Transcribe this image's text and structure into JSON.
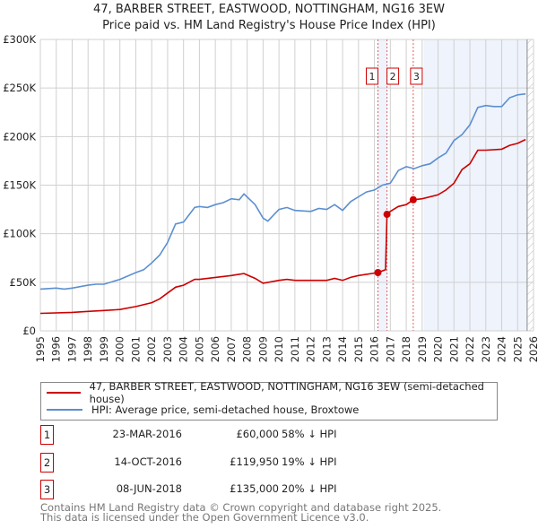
{
  "title": "47, BARBER STREET, EASTWOOD, NOTTINGHAM, NG16 3EW",
  "subtitle": "Price paid vs. HM Land Registry's House Price Index (HPI)",
  "chart_data": {
    "type": "line",
    "xlim": [
      1995,
      2026
    ],
    "ylim": [
      0,
      300000
    ],
    "y_ticks": [
      {
        "v": 0,
        "label": "£0"
      },
      {
        "v": 50000,
        "label": "£50K"
      },
      {
        "v": 100000,
        "label": "£100K"
      },
      {
        "v": 150000,
        "label": "£150K"
      },
      {
        "v": 200000,
        "label": "£200K"
      },
      {
        "v": 250000,
        "label": "£250K"
      },
      {
        "v": 300000,
        "label": "£300K"
      }
    ],
    "x_ticks": [
      "1995",
      "1996",
      "1997",
      "1998",
      "1999",
      "2000",
      "2001",
      "2002",
      "2003",
      "2004",
      "2005",
      "2006",
      "2007",
      "2008",
      "2009",
      "2010",
      "2011",
      "2012",
      "2013",
      "2014",
      "2015",
      "2016",
      "2017",
      "2018",
      "2019",
      "2020",
      "2021",
      "2022",
      "2023",
      "2024",
      "2025",
      "2026"
    ],
    "colors": {
      "property": "#cc0000",
      "hpi": "#5b8fd0",
      "shade": "#eef3fc"
    },
    "series": [
      {
        "name": "property",
        "x": [
          1995,
          1997,
          1998,
          1999,
          2000,
          2001,
          2002,
          2002.5,
          2003,
          2003.5,
          2004,
          2004.7,
          2005,
          2006,
          2007,
          2007.8,
          2008.5,
          2009,
          2010,
          2010.5,
          2011,
          2012,
          2013,
          2013.5,
          2014,
          2014.5,
          2015,
          2016.22,
          2016.7,
          2016.79,
          2017,
          2017.5,
          2018,
          2018.44,
          2019,
          2020,
          2020.5,
          2021,
          2021.5,
          2022,
          2022.5,
          2023,
          2024,
          2024.5,
          2025,
          2025.5
        ],
        "y": [
          18000,
          19000,
          20000,
          21000,
          22000,
          25000,
          29000,
          33000,
          39000,
          45000,
          47000,
          53000,
          53000,
          55000,
          57000,
          59000,
          54000,
          49000,
          52000,
          53000,
          52000,
          52000,
          52000,
          54000,
          52000,
          55000,
          57000,
          60000,
          63000,
          119950,
          123000,
          128000,
          130000,
          135000,
          136000,
          140000,
          145000,
          152000,
          166000,
          172000,
          186000,
          186000,
          187000,
          191000,
          193000,
          197000
        ]
      },
      {
        "name": "hpi",
        "x": [
          1995,
          1996,
          1996.5,
          1997,
          1998,
          1998.5,
          1999,
          2000,
          2001,
          2001.5,
          2002,
          2002.5,
          2003,
          2003.5,
          2004,
          2004.7,
          2005,
          2005.5,
          2006,
          2006.5,
          2007,
          2007.5,
          2007.8,
          2008.5,
          2009,
          2009.3,
          2010,
          2010.5,
          2011,
          2012,
          2012.5,
          2013,
          2013.5,
          2014,
          2014.5,
          2015,
          2015.5,
          2016,
          2016.5,
          2017,
          2017.5,
          2018,
          2018.5,
          2019,
          2019.5,
          2020,
          2020.5,
          2021,
          2021.5,
          2022,
          2022.5,
          2023,
          2023.5,
          2024,
          2024.5,
          2025,
          2025.5
        ],
        "y": [
          43000,
          44000,
          43000,
          44000,
          47000,
          48000,
          48000,
          53000,
          60000,
          63000,
          70000,
          78000,
          91000,
          110000,
          112000,
          127000,
          128000,
          127000,
          130000,
          132000,
          136000,
          135000,
          141000,
          130000,
          116000,
          113000,
          125000,
          127000,
          124000,
          123000,
          126000,
          125000,
          130000,
          124000,
          133000,
          138000,
          143000,
          145000,
          150000,
          152000,
          165000,
          169000,
          167000,
          170000,
          172000,
          178000,
          183000,
          196000,
          202000,
          212000,
          230000,
          232000,
          231000,
          231000,
          240000,
          243000,
          244000
        ]
      }
    ],
    "sales": [
      {
        "id": "1",
        "x": 2016.22,
        "y": 60000
      },
      {
        "id": "2",
        "x": 2016.79,
        "y": 119950
      },
      {
        "id": "3",
        "x": 2018.44,
        "y": 135000
      }
    ],
    "shaded": [
      [
        2016.22,
        2016.79
      ],
      [
        2019.1,
        2025.6
      ]
    ],
    "hatched_from": 2025.6
  },
  "legend": {
    "property": "47, BARBER STREET, EASTWOOD, NOTTINGHAM, NG16 3EW (semi-detached house)",
    "hpi": "HPI: Average price, semi-detached house, Broxtowe"
  },
  "table": [
    {
      "id": "1",
      "date": "23-MAR-2016",
      "price": "£60,000",
      "hpi": "58% ↓ HPI"
    },
    {
      "id": "2",
      "date": "14-OCT-2016",
      "price": "£119,950",
      "hpi": "19% ↓ HPI"
    },
    {
      "id": "3",
      "date": "08-JUN-2018",
      "price": "£135,000",
      "hpi": "20% ↓ HPI"
    }
  ],
  "footer": [
    "Contains HM Land Registry data © Crown copyright and database right 2025.",
    "This data is licensed under the Open Government Licence v3.0."
  ]
}
